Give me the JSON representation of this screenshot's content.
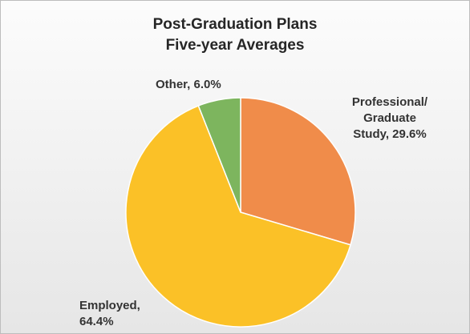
{
  "chart_data": {
    "type": "pie",
    "title": "Post-Graduation Plans",
    "subtitle": "Five-year Averages",
    "slices": [
      {
        "label": "Professional/ Graduate Study",
        "label_lines": [
          "Professional/",
          "Graduate",
          "Study, 29.6%"
        ],
        "value": 29.6,
        "color": "#F08C4A"
      },
      {
        "label": "Employed",
        "label_lines": [
          "Employed,",
          "64.4%"
        ],
        "value": 64.4,
        "color": "#FBC127"
      },
      {
        "label": "Other",
        "label_lines": [
          "Other, 6.0%"
        ],
        "value": 6.0,
        "color": "#7DB55E"
      }
    ],
    "start_angle_deg": 0,
    "direction": "clockwise",
    "value_format": "percent"
  }
}
